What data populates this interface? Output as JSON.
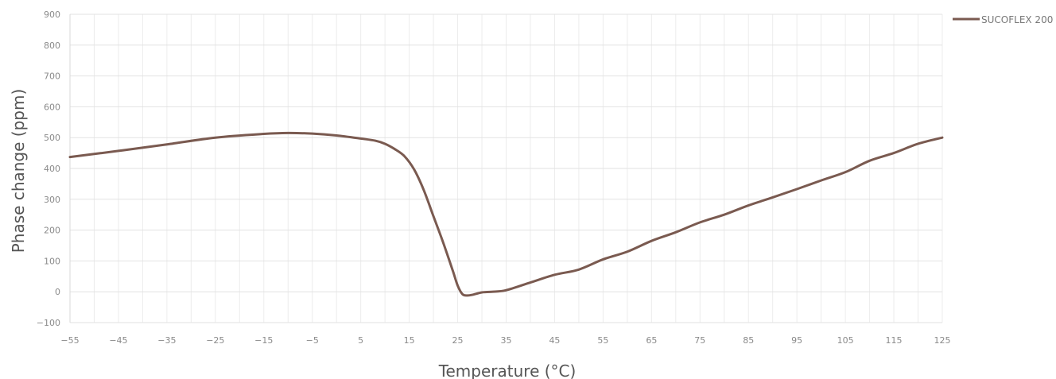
{
  "chart_data": {
    "type": "line",
    "xlabel": "Temperature (°C)",
    "ylabel": "Phase change (ppm)",
    "xlim": [
      -55,
      125
    ],
    "ylim": [
      -100,
      900
    ],
    "x_tick_labels": [
      "−55",
      "−45",
      "−35",
      "−25",
      "−15",
      "−5",
      "5",
      "15",
      "25",
      "35",
      "45",
      "55",
      "65",
      "75",
      "85",
      "95",
      "105",
      "115",
      "125"
    ],
    "y_tick_labels": [
      "900",
      "800",
      "700",
      "600",
      "500",
      "400",
      "300",
      "200",
      "100",
      "0",
      "−100"
    ],
    "grid": true,
    "legend": "top-right",
    "series": [
      {
        "name": "SUCOFLEX 200",
        "color": "#7a5a50",
        "x": [
          -55,
          -45,
          -35,
          -25,
          -15,
          -10,
          -5,
          0,
          5,
          8,
          10,
          12,
          14,
          16,
          18,
          20,
          22,
          24,
          25,
          26,
          27,
          28,
          30,
          32,
          35,
          40,
          45,
          50,
          55,
          60,
          65,
          70,
          75,
          80,
          85,
          90,
          95,
          100,
          105,
          110,
          115,
          120,
          125
        ],
        "y": [
          437,
          457,
          478,
          500,
          512,
          515,
          513,
          507,
          497,
          490,
          480,
          463,
          440,
          397,
          330,
          245,
          160,
          68,
          20,
          -8,
          -12,
          -10,
          -2,
          0,
          5,
          30,
          55,
          72,
          105,
          130,
          165,
          193,
          225,
          250,
          280,
          306,
          333,
          361,
          388,
          425,
          450,
          480,
          500
        ]
      }
    ]
  }
}
